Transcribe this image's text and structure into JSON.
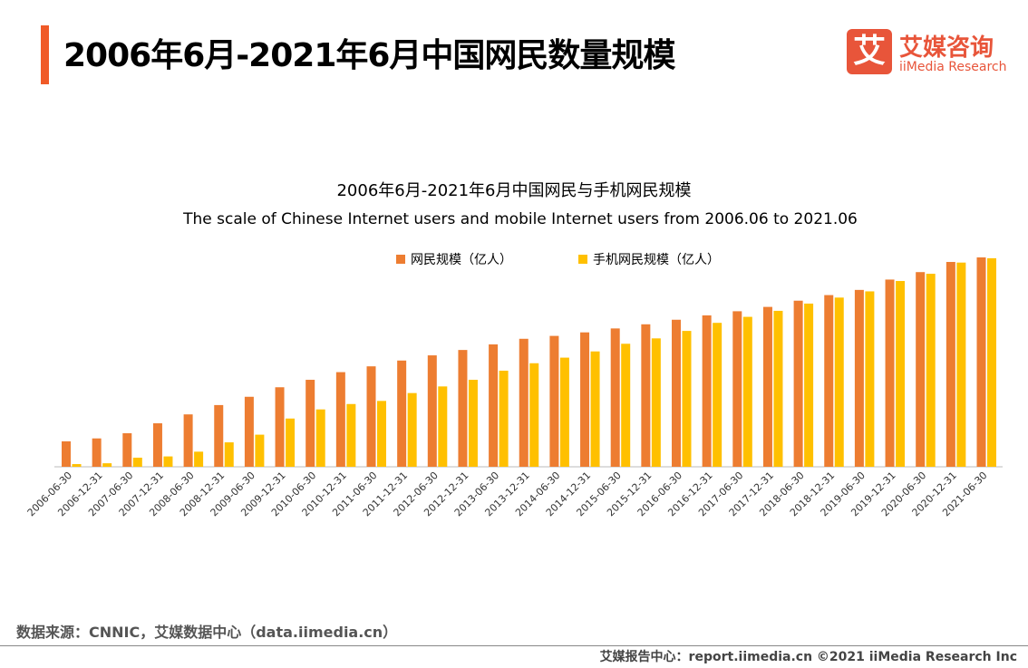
{
  "header": {
    "title": "2006年6月-2021年6月中国网民数量规模"
  },
  "logo": {
    "icon_char": "艾",
    "cn": "艾媒咨询",
    "en": "iiMedia Research"
  },
  "colors": {
    "accent": "#F05A28",
    "series1": "#ED7D31",
    "series2": "#FFC000"
  },
  "chart_data": {
    "type": "bar",
    "title": "2006年6月-2021年6月中国网民与手机网民规模",
    "subtitle": "The scale of Chinese Internet users and mobile Internet users from 2006.06 to 2021.06",
    "legend_position": "top",
    "grid": false,
    "categories": [
      "2006-06-30",
      "2006-12-31",
      "2007-06-30",
      "2007-12-31",
      "2008-06-30",
      "2008-12-31",
      "2009-06-30",
      "2009-12-31",
      "2010-06-30",
      "2010-12-31",
      "2011-06-30",
      "2011-12-31",
      "2012-06-30",
      "2012-12-31",
      "2013-06-30",
      "2013-12-31",
      "2014-06-30",
      "2014-12-31",
      "2015-06-30",
      "2015-12-31",
      "2016-06-30",
      "2016-12-31",
      "2017-06-30",
      "2017-12-31",
      "2018-06-30",
      "2018-12-31",
      "2019-06-30",
      "2019-12-31",
      "2020-06-30",
      "2020-12-31",
      "2021-06-30"
    ],
    "series": [
      {
        "name": "网民规模（亿人）",
        "values": [
          1.23,
          1.37,
          1.62,
          2.1,
          2.53,
          2.98,
          3.38,
          3.84,
          4.2,
          4.57,
          4.85,
          5.13,
          5.38,
          5.64,
          5.91,
          6.18,
          6.32,
          6.49,
          6.68,
          6.88,
          7.1,
          7.31,
          7.51,
          7.72,
          8.02,
          8.29,
          8.54,
          9.04,
          9.4,
          9.89,
          10.11
        ]
      },
      {
        "name": "手机网民规模（亿人）",
        "values": [
          0.13,
          0.17,
          0.44,
          0.5,
          0.73,
          1.18,
          1.55,
          2.33,
          2.77,
          3.03,
          3.18,
          3.56,
          3.88,
          4.2,
          4.64,
          5.0,
          5.27,
          5.57,
          5.94,
          6.2,
          6.56,
          6.95,
          7.24,
          7.53,
          7.88,
          8.17,
          8.47,
          8.97,
          9.32,
          9.86,
          10.07
        ]
      }
    ],
    "ylim": [
      0,
      11
    ]
  },
  "footer": {
    "source": "数据来源：CNNIC，艾媒数据中心（data.iimedia.cn）",
    "copyright": "艾媒报告中心：report.iimedia.cn  ©2021  iiMedia Research  Inc"
  }
}
